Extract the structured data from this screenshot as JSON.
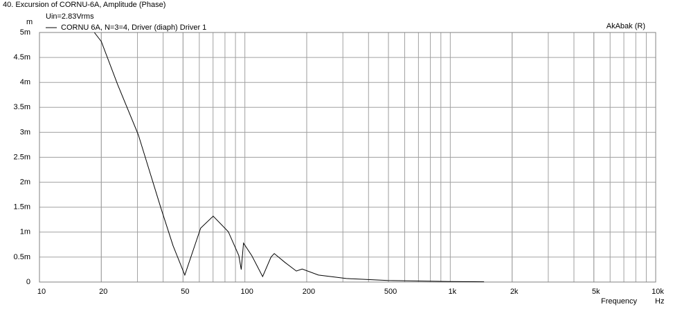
{
  "chart_data": {
    "type": "line",
    "title": "40. Excursion of CORNU-6A, Amplitude (Phase)",
    "subtitle": "Uin=2.83Vrms",
    "annotation": "AkAbak (R)",
    "y_label": "m",
    "x_label": "Frequency",
    "x_unit": "Hz",
    "x_log": true,
    "grid": true,
    "x": [
      18.5,
      20,
      24,
      30.3,
      38.9,
      44.7,
      51,
      60.9,
      70.1,
      83,
      93.4,
      96,
      98.5,
      108,
      122,
      134,
      139,
      157,
      178,
      190,
      228,
      312,
      497,
      1000,
      1460
    ],
    "series": [
      {
        "name": "CORNU 6A, N=3=4, Driver (diaph) Driver 1",
        "color": "#000000",
        "values": [
          5.0,
          4.82,
          3.96,
          2.95,
          1.5,
          0.73,
          0.14,
          1.08,
          1.32,
          1.01,
          0.53,
          0.25,
          0.78,
          0.53,
          0.11,
          0.5,
          0.57,
          0.39,
          0.22,
          0.26,
          0.14,
          0.07,
          0.03,
          0.01,
          0.005
        ]
      }
    ],
    "xlim": [
      10,
      10000
    ],
    "xticks": [
      10,
      20,
      50,
      100,
      200,
      500,
      {
        "value": 1000,
        "label": "1k"
      },
      {
        "value": 2000,
        "label": "2k"
      },
      {
        "value": 5000,
        "label": "5k"
      },
      {
        "value": 10000,
        "label": "10k"
      }
    ],
    "ylim": [
      0,
      5
    ],
    "yticks": [
      0,
      {
        "value": 0.5,
        "label": "0.5m"
      },
      {
        "value": 1,
        "label": "1m"
      },
      {
        "value": 1.5,
        "label": "1.5m"
      },
      {
        "value": 2,
        "label": "2m"
      },
      {
        "value": 2.5,
        "label": "2.5m"
      },
      {
        "value": 3,
        "label": "3m"
      },
      {
        "value": 3.5,
        "label": "3.5m"
      },
      {
        "value": 4,
        "label": "4m"
      },
      {
        "value": 4.5,
        "label": "4.5m"
      },
      {
        "value": 5,
        "label": "5m"
      }
    ]
  }
}
